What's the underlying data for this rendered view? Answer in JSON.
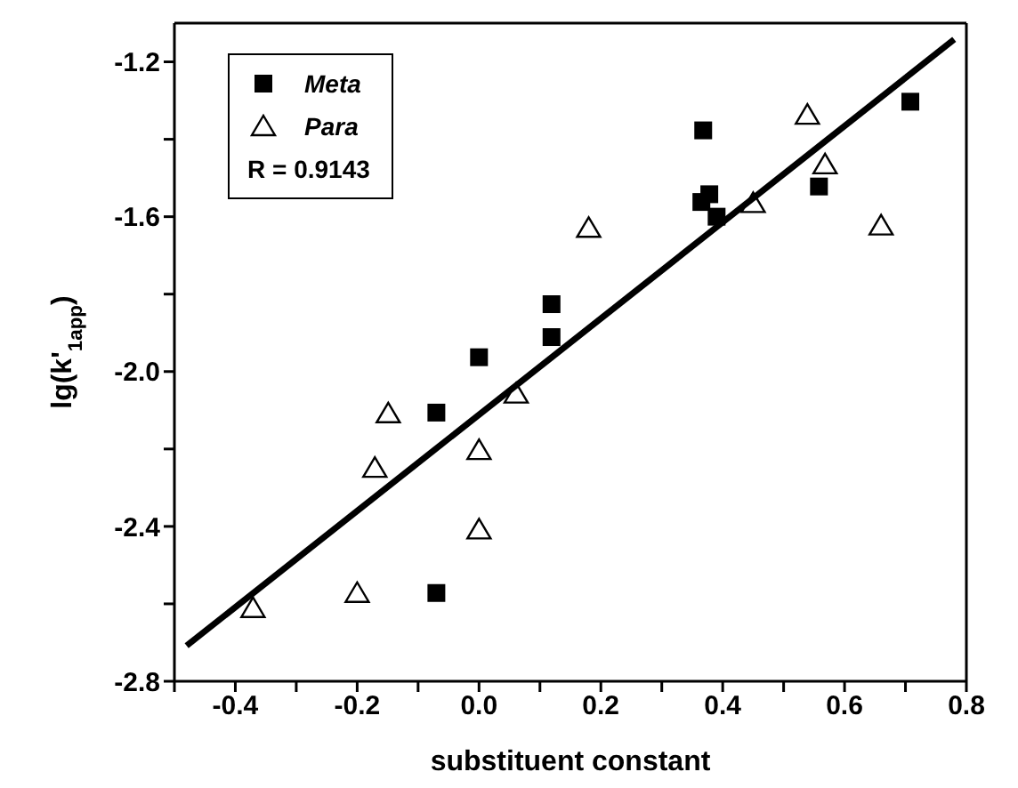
{
  "chart_data": {
    "type": "scatter",
    "xlabel": "substituent constant",
    "ylabel": "lg(k'$_{1app}$)",
    "xlim": [
      -0.5,
      0.8
    ],
    "ylim": [
      -2.8,
      -1.1
    ],
    "xticks": [
      {
        "value": -0.5,
        "label": null
      },
      -0.4,
      {
        "value": -0.3,
        "label": null
      },
      -0.2,
      {
        "value": -0.1,
        "label": null
      },
      {
        "value": 0,
        "label": "0.0"
      },
      {
        "value": 0.1,
        "label": null
      },
      0.2,
      {
        "value": 0.3,
        "label": null
      },
      0.4,
      {
        "value": 0.5,
        "label": null
      },
      0.6,
      {
        "value": 0.7,
        "label": null
      },
      0.8
    ],
    "yticks": [
      -2.8,
      {
        "value": -2.6,
        "label": null
      },
      -2.4,
      {
        "value": -2.2,
        "label": null
      },
      {
        "value": -2,
        "label": "-2.0"
      },
      {
        "value": -1.8,
        "label": null
      },
      -1.6,
      {
        "value": -1.4,
        "label": null
      },
      -1.2
    ],
    "legend": "top left",
    "annotations": [
      "R = 0.9143"
    ],
    "series": [
      {
        "name": "Meta",
        "marker": "square",
        "color": "#000000",
        "x": [
          0.368,
          0.365,
          0.378,
          0.39,
          0.558,
          0.708,
          0.119,
          0.119,
          0.0,
          -0.07,
          -0.07
        ],
        "values": [
          -1.377,
          -1.562,
          -1.542,
          -1.6,
          -1.522,
          -1.303,
          -1.826,
          -1.911,
          -1.963,
          -2.106,
          -2.572
        ]
      },
      {
        "name": "Para",
        "marker": "triangle",
        "color": "#000000",
        "x": [
          -0.371,
          -0.2,
          -0.171,
          -0.149,
          0.0,
          0.0,
          0.061,
          0.18,
          0.45,
          0.539,
          0.568,
          0.66
        ],
        "values": [
          -2.611,
          -2.572,
          -2.249,
          -2.108,
          -2.203,
          -2.408,
          -2.057,
          -1.629,
          -1.565,
          -1.337,
          -1.465,
          -1.623
        ]
      },
      {
        "type": "line",
        "marker": "none",
        "color": "#000000",
        "x": [
          -0.48,
          0.78
        ],
        "values": [
          -2.708,
          -1.142
        ]
      }
    ]
  }
}
